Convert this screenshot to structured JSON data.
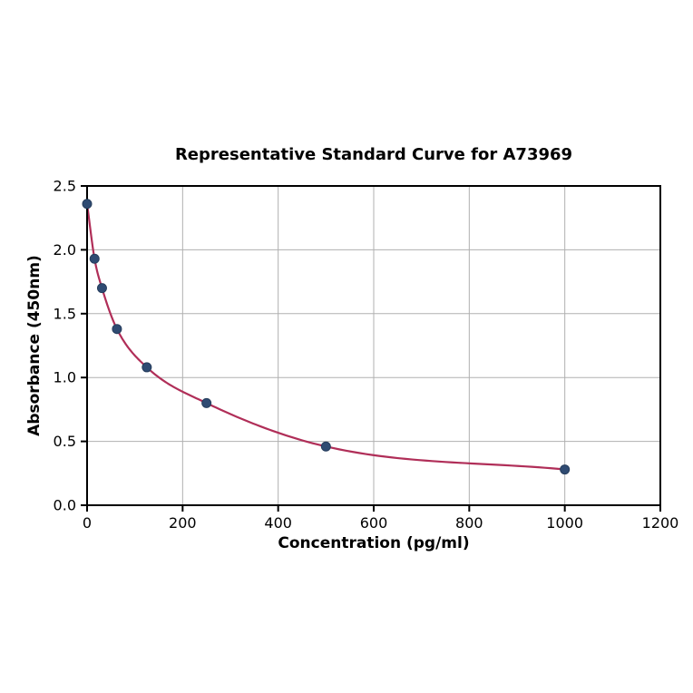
{
  "chart_data": {
    "type": "scatter",
    "title": "Representative Standard Curve for A73969",
    "xlabel": "Concentration (pg/ml)",
    "ylabel": "Absorbance (450nm)",
    "xlim": [
      0,
      1200
    ],
    "ylim": [
      0,
      2.5
    ],
    "x_ticks": [
      0,
      200,
      400,
      600,
      800,
      1000,
      1200
    ],
    "y_tick_labels": [
      "0.0",
      "0.5",
      "1.0",
      "1.5",
      "2.0",
      "2.5"
    ],
    "grid": true,
    "legend": null,
    "series": [
      {
        "name": "standards",
        "marker": "circle",
        "x": [
          0,
          15.63,
          31.25,
          62.5,
          125,
          250,
          500,
          1000
        ],
        "y": [
          2.36,
          1.93,
          1.7,
          1.38,
          1.08,
          0.8,
          0.46,
          0.28
        ]
      }
    ],
    "fit_curve_through_points": true,
    "colors": {
      "curve": "#b02e58",
      "point_fill": "#2f4b72",
      "point_edge": "#263d5c",
      "grid": "#b0b0b0",
      "spine": "#000000",
      "background": "#ffffff",
      "text": "#000000"
    }
  }
}
